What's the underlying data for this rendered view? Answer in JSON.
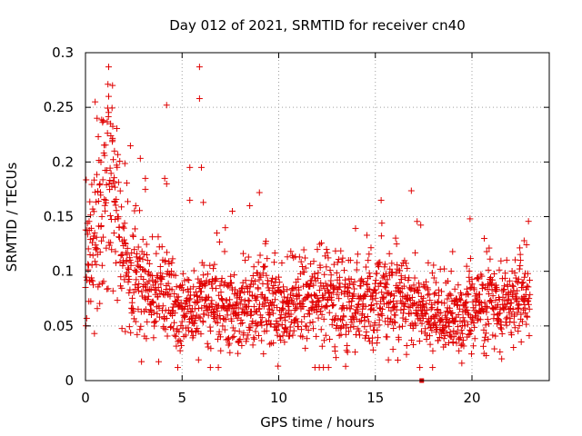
{
  "chart_data": {
    "type": "scatter",
    "title": "Day 012 of 2021, SRMTID for receiver cn40",
    "xlabel": "GPS time / hours",
    "ylabel": "SRMTID / TECUs",
    "xlim": [
      0,
      24
    ],
    "ylim": [
      0,
      0.3
    ],
    "x_ticks": [
      0,
      5,
      10,
      15,
      20
    ],
    "y_ticks": [
      0,
      0.05,
      0.1,
      0.15,
      0.2,
      0.25,
      0.3
    ],
    "x_tick_labels": [
      "0",
      "5",
      "10",
      "15",
      "20"
    ],
    "y_tick_labels": [
      "0",
      "0.05",
      "0.1",
      "0.15",
      "0.2",
      "0.25",
      "0.3"
    ],
    "grid": true,
    "marker": "plus",
    "color": "#e00000",
    "series": [
      {
        "name": "SRMTID",
        "sample_step_hours": 0.0125,
        "baseline_profile": [
          [
            0.0,
            0.11
          ],
          [
            0.5,
            0.145
          ],
          [
            1.0,
            0.17
          ],
          [
            1.3,
            0.18
          ],
          [
            1.6,
            0.14
          ],
          [
            2.0,
            0.12
          ],
          [
            2.5,
            0.1
          ],
          [
            3.0,
            0.085
          ],
          [
            4.0,
            0.075
          ],
          [
            5.0,
            0.065
          ],
          [
            6.0,
            0.07
          ],
          [
            7.0,
            0.07
          ],
          [
            8.0,
            0.065
          ],
          [
            9.0,
            0.075
          ],
          [
            10.0,
            0.06
          ],
          [
            11.0,
            0.07
          ],
          [
            12.0,
            0.075
          ],
          [
            13.0,
            0.072
          ],
          [
            14.0,
            0.068
          ],
          [
            15.0,
            0.07
          ],
          [
            16.0,
            0.075
          ],
          [
            17.0,
            0.07
          ],
          [
            18.0,
            0.06
          ],
          [
            19.0,
            0.055
          ],
          [
            20.0,
            0.065
          ],
          [
            21.0,
            0.068
          ],
          [
            22.0,
            0.07
          ],
          [
            23.0,
            0.072
          ]
        ],
        "peaks": [
          [
            1.2,
            0.287
          ],
          [
            1.4,
            0.27
          ],
          [
            1.2,
            0.26
          ],
          [
            0.6,
            0.24
          ],
          [
            0.5,
            0.255
          ],
          [
            1.3,
            0.235
          ],
          [
            1.4,
            0.22
          ],
          [
            0.8,
            0.2
          ],
          [
            1.5,
            0.21
          ],
          [
            4.2,
            0.252
          ],
          [
            5.9,
            0.287
          ],
          [
            5.9,
            0.258
          ],
          [
            5.4,
            0.195
          ],
          [
            6.0,
            0.195
          ],
          [
            4.1,
            0.185
          ],
          [
            3.1,
            0.185
          ],
          [
            3.1,
            0.175
          ],
          [
            4.2,
            0.18
          ],
          [
            5.4,
            0.165
          ],
          [
            6.1,
            0.163
          ],
          [
            9.0,
            0.172
          ],
          [
            15.3,
            0.165
          ],
          [
            19.9,
            0.148
          ],
          [
            8.5,
            0.16
          ],
          [
            7.6,
            0.155
          ],
          [
            2.6,
            0.16
          ],
          [
            22.7,
            0.128
          ],
          [
            16.1,
            0.125
          ],
          [
            12.0,
            0.12
          ],
          [
            19.0,
            0.118
          ]
        ]
      }
    ],
    "extra_marks": [
      {
        "x": 17.4,
        "y": 0.0,
        "shape": "square"
      }
    ]
  }
}
